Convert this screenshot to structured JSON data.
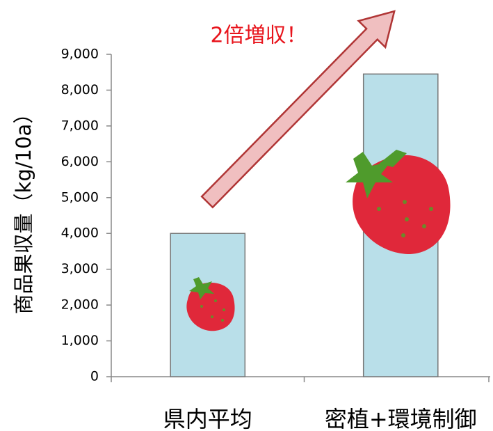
{
  "chart_data": {
    "type": "bar",
    "annotation": "2倍増収！",
    "y_label": "商品果収量（kg/10a）",
    "categories": [
      "県内平均",
      "密植+環境制御"
    ],
    "values": [
      4000,
      8450
    ],
    "color": "#b9dfe9",
    "ylim": [
      0,
      9000
    ],
    "yticks": [
      0,
      {
        "value": 1000,
        "label": "1,000"
      },
      {
        "value": 2000,
        "label": "2,000"
      },
      {
        "value": 3000,
        "label": "3,000"
      },
      {
        "value": 4000,
        "label": "4,000"
      },
      {
        "value": 5000,
        "label": "5,000"
      },
      {
        "value": 6000,
        "label": "6,000"
      },
      {
        "value": 7000,
        "label": "7,000"
      },
      {
        "value": 8000,
        "label": "8,000"
      },
      {
        "value": 9000,
        "label": "9,000"
      }
    ]
  }
}
